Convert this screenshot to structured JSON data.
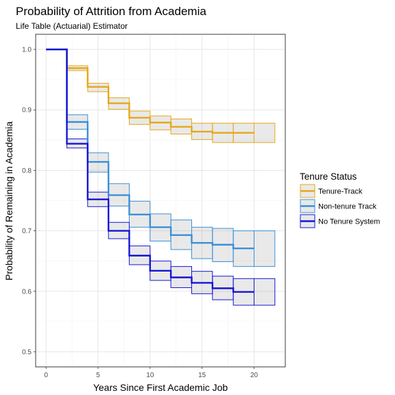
{
  "chart_data": {
    "type": "line",
    "title": "Probability of Attrition from Academia",
    "subtitle": "Life Table (Actuarial) Estimator",
    "xlabel": "Years Since First Academic Job",
    "ylabel": "Probability of Remaining in Academia",
    "xlim": [
      -1.0,
      23.0
    ],
    "ylim": [
      0.475,
      1.025
    ],
    "x_ticks": [
      0,
      5,
      10,
      15,
      20
    ],
    "x_tick_labels": [
      "0",
      "5",
      "10",
      "15",
      "20"
    ],
    "y_ticks": [
      0.5,
      0.6,
      0.7,
      0.8,
      0.9,
      1.0
    ],
    "y_tick_labels": [
      "0.5",
      "0.6",
      "0.7",
      "0.8",
      "0.9",
      "1.0"
    ],
    "grid": true,
    "legend": {
      "title": "Tenure Status",
      "position": "right"
    },
    "series": [
      {
        "name": "Tenure-Track",
        "color": "#E6A817",
        "intervals": [
          {
            "x0": 0,
            "x1": 2,
            "y": 1.0
          },
          {
            "x0": 2,
            "x1": 4,
            "y": 0.969,
            "lo": 0.965,
            "hi": 0.973
          },
          {
            "x0": 4,
            "x1": 6,
            "y": 0.938,
            "lo": 0.93,
            "hi": 0.944
          },
          {
            "x0": 6,
            "x1": 8,
            "y": 0.911,
            "lo": 0.901,
            "hi": 0.92
          },
          {
            "x0": 8,
            "x1": 10,
            "y": 0.887,
            "lo": 0.876,
            "hi": 0.898
          },
          {
            "x0": 10,
            "x1": 12,
            "y": 0.879,
            "lo": 0.867,
            "hi": 0.89
          },
          {
            "x0": 12,
            "x1": 14,
            "y": 0.872,
            "lo": 0.86,
            "hi": 0.885
          },
          {
            "x0": 14,
            "x1": 16,
            "y": 0.864,
            "lo": 0.851,
            "hi": 0.878
          },
          {
            "x0": 16,
            "x1": 18,
            "y": 0.862,
            "lo": 0.846,
            "hi": 0.878
          },
          {
            "x0": 18,
            "x1": 20,
            "y": 0.862,
            "lo": 0.846,
            "hi": 0.878
          },
          {
            "x0": 20,
            "x1": 22,
            "lo": 0.846,
            "hi": 0.878
          }
        ]
      },
      {
        "name": "Non-tenure Track",
        "color": "#3A8FD8",
        "intervals": [
          {
            "x0": 0,
            "x1": 2,
            "y": 1.0
          },
          {
            "x0": 2,
            "x1": 4,
            "y": 0.88,
            "lo": 0.868,
            "hi": 0.892
          },
          {
            "x0": 4,
            "x1": 6,
            "y": 0.814,
            "lo": 0.797,
            "hi": 0.829
          },
          {
            "x0": 6,
            "x1": 8,
            "y": 0.759,
            "lo": 0.741,
            "hi": 0.778
          },
          {
            "x0": 8,
            "x1": 10,
            "y": 0.727,
            "lo": 0.706,
            "hi": 0.749
          },
          {
            "x0": 10,
            "x1": 12,
            "y": 0.706,
            "lo": 0.683,
            "hi": 0.728
          },
          {
            "x0": 12,
            "x1": 14,
            "y": 0.693,
            "lo": 0.669,
            "hi": 0.718
          },
          {
            "x0": 14,
            "x1": 16,
            "y": 0.68,
            "lo": 0.654,
            "hi": 0.706
          },
          {
            "x0": 16,
            "x1": 18,
            "y": 0.677,
            "lo": 0.649,
            "hi": 0.704
          },
          {
            "x0": 18,
            "x1": 20,
            "y": 0.671,
            "lo": 0.641,
            "hi": 0.7
          },
          {
            "x0": 20,
            "x1": 22,
            "lo": 0.641,
            "hi": 0.7
          }
        ]
      },
      {
        "name": "No Tenure System",
        "color": "#1414D9",
        "intervals": [
          {
            "x0": 0,
            "x1": 2,
            "y": 1.0
          },
          {
            "x0": 2,
            "x1": 4,
            "y": 0.844,
            "lo": 0.837,
            "hi": 0.852
          },
          {
            "x0": 4,
            "x1": 6,
            "y": 0.752,
            "lo": 0.74,
            "hi": 0.764
          },
          {
            "x0": 6,
            "x1": 8,
            "y": 0.7,
            "lo": 0.687,
            "hi": 0.714
          },
          {
            "x0": 8,
            "x1": 10,
            "y": 0.659,
            "lo": 0.644,
            "hi": 0.675
          },
          {
            "x0": 10,
            "x1": 12,
            "y": 0.634,
            "lo": 0.618,
            "hi": 0.65
          },
          {
            "x0": 12,
            "x1": 14,
            "y": 0.623,
            "lo": 0.606,
            "hi": 0.641
          },
          {
            "x0": 14,
            "x1": 16,
            "y": 0.614,
            "lo": 0.596,
            "hi": 0.633
          },
          {
            "x0": 16,
            "x1": 18,
            "y": 0.605,
            "lo": 0.586,
            "hi": 0.625
          },
          {
            "x0": 18,
            "x1": 20,
            "y": 0.599,
            "lo": 0.577,
            "hi": 0.621
          },
          {
            "x0": 20,
            "x1": 22,
            "lo": 0.577,
            "hi": 0.621
          }
        ]
      }
    ]
  }
}
